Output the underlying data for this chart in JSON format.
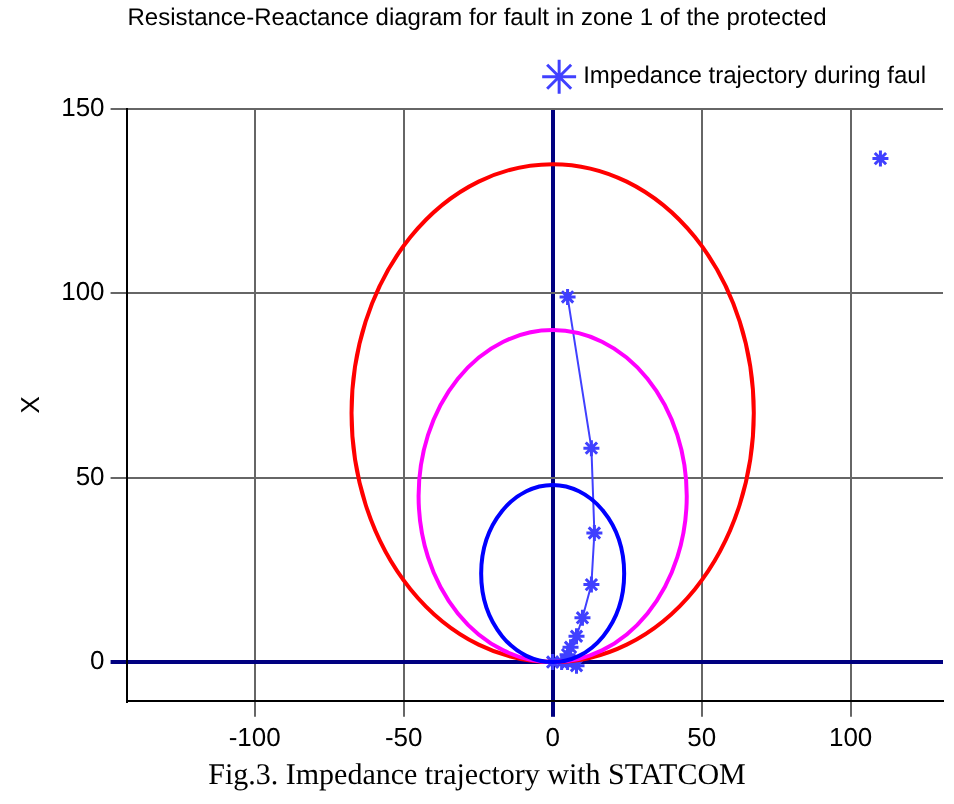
{
  "chart_data": {
    "type": "line",
    "title": "Resistance-Reactance diagram for fault in zone 1 of the protected",
    "ylabel": "X",
    "annotations": [
      "Fig.3. Impedance trajectory with STATCOM"
    ],
    "xlim": [
      -143,
      131
    ],
    "ylim": [
      -10.5,
      150
    ],
    "xticks": [
      -100,
      -50,
      0,
      50,
      100
    ],
    "yticks": [
      0,
      50,
      100,
      150
    ],
    "grid": true,
    "legend": "top right",
    "line_style": "solid",
    "series": [
      {
        "name": "Impedance trajectory during faul",
        "color": "#4040ff",
        "marker": "cross",
        "x": [
          5,
          13,
          14,
          13,
          10,
          8,
          6,
          5,
          3,
          8,
          5,
          0,
          null,
          110
        ],
        "values": [
          99,
          58,
          35,
          21,
          12,
          7,
          4,
          2,
          0,
          -1,
          0,
          0,
          null,
          136.5
        ]
      }
    ]
  }
}
